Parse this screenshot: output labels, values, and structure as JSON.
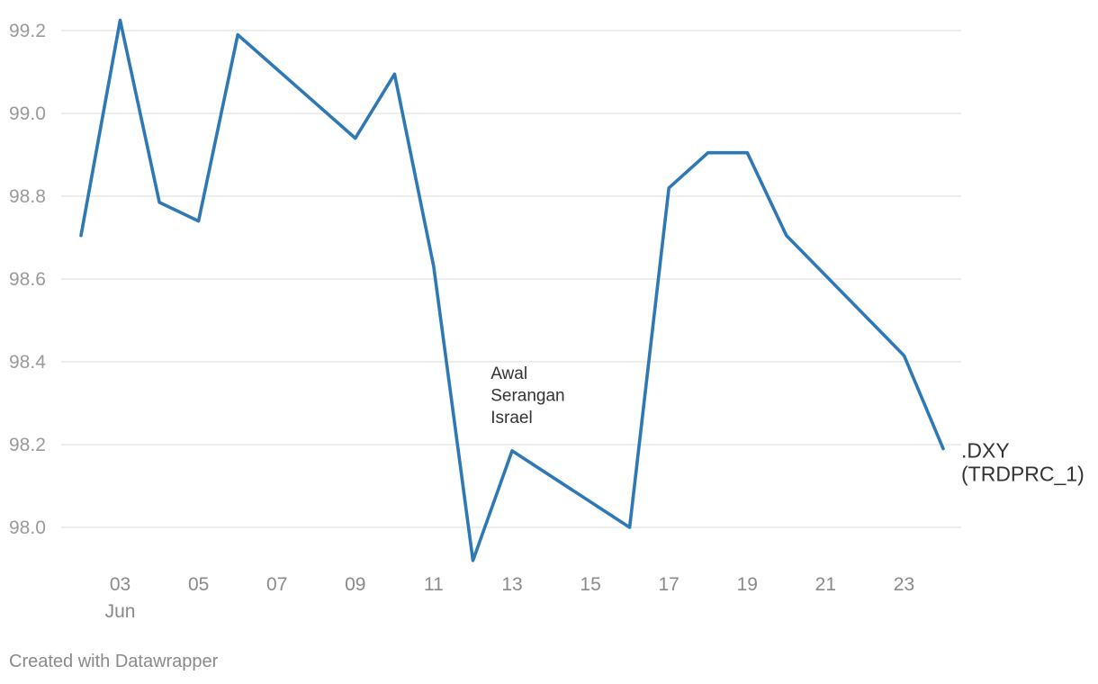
{
  "chart_data": {
    "type": "line",
    "title": "",
    "xlabel": "",
    "ylabel": "",
    "x": [
      "2025-06-02",
      "2025-06-03",
      "2025-06-04",
      "2025-06-05",
      "2025-06-06",
      "2025-06-09",
      "2025-06-10",
      "2025-06-11",
      "2025-06-12",
      "2025-06-13",
      "2025-06-16",
      "2025-06-17",
      "2025-06-18",
      "2025-06-19",
      "2025-06-20",
      "2025-06-23",
      "2025-06-24"
    ],
    "x_tick_labels": [
      "03",
      "05",
      "07",
      "09",
      "11",
      "13",
      "15",
      "17",
      "19",
      "21",
      "23"
    ],
    "x_month_label": "Jun",
    "series": [
      {
        "name": ".DXY (TRDPRC_1)",
        "label_lines": [
          ".DXY",
          "(TRDPRC_1)"
        ],
        "color": "#2e78b5",
        "values": [
          98.705,
          99.225,
          98.785,
          98.74,
          99.19,
          98.94,
          99.095,
          98.63,
          97.92,
          98.185,
          98.0,
          98.82,
          98.905,
          98.905,
          98.705,
          98.415,
          98.19
        ]
      }
    ],
    "y_ticks": [
      "99.2",
      "99.0",
      "98.8",
      "98.6",
      "98.4",
      "98.2",
      "98.0"
    ],
    "ylim": [
      97.92,
      99.225
    ],
    "grid": true,
    "annotation": {
      "lines": [
        "Awal",
        "Serangan",
        "Israel"
      ]
    }
  },
  "footer": "Created with Datawrapper"
}
